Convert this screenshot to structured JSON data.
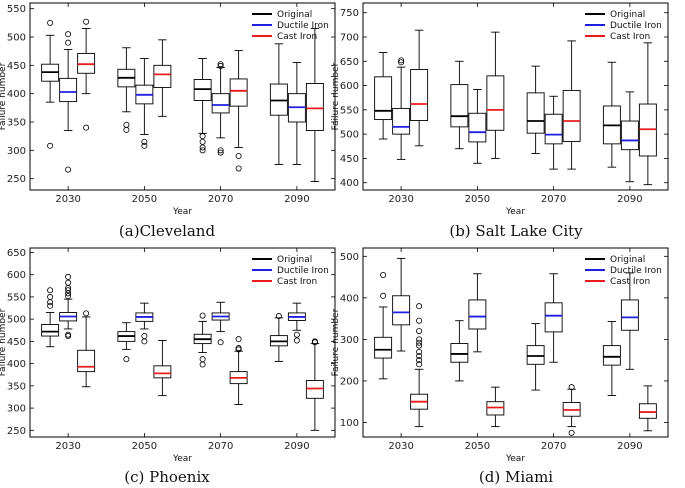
{
  "legend": [
    {
      "name": "Original",
      "color": "#000000"
    },
    {
      "name": "Ductile Iron",
      "color": "#1f1fe0"
    },
    {
      "name": "Cast Iron",
      "color": "#e81c1c"
    }
  ],
  "chart_data": [
    {
      "type": "boxplot",
      "caption": "(a)Cleveland",
      "xlabel": "Year",
      "ylabel": "Failure number",
      "categories": [
        "2030",
        "2050",
        "2070",
        "2090"
      ],
      "ylim": [
        230,
        560
      ],
      "yticks": [
        250,
        300,
        350,
        400,
        450,
        500,
        550
      ],
      "series": [
        {
          "name": "Original",
          "boxes": [
            {
              "whislo": 385,
              "q1": 422,
              "med": 438,
              "q3": 452,
              "whishi": 503,
              "fliers": [
                308,
                525
              ]
            },
            {
              "whislo": 368,
              "q1": 412,
              "med": 428,
              "q3": 443,
              "whishi": 481,
              "fliers": [
                336,
                345
              ]
            },
            {
              "whislo": 330,
              "q1": 388,
              "med": 408,
              "q3": 425,
              "whishi": 462,
              "fliers": [
                300,
                305,
                315,
                325
              ]
            },
            {
              "whislo": 275,
              "q1": 362,
              "med": 388,
              "q3": 417,
              "whishi": 488,
              "fliers": []
            }
          ]
        },
        {
          "name": "Ductile Iron",
          "boxes": [
            {
              "whislo": 335,
              "q1": 386,
              "med": 403,
              "q3": 427,
              "whishi": 478,
              "fliers": [
                266,
                490,
                505
              ]
            },
            {
              "whislo": 328,
              "q1": 382,
              "med": 398,
              "q3": 415,
              "whishi": 462,
              "fliers": [
                308,
                315
              ]
            },
            {
              "whislo": 322,
              "q1": 366,
              "med": 380,
              "q3": 400,
              "whishi": 446,
              "fliers": [
                296,
                300,
                449,
                452
              ]
            },
            {
              "whislo": 275,
              "q1": 350,
              "med": 376,
              "q3": 400,
              "whishi": 455,
              "fliers": []
            }
          ]
        },
        {
          "name": "Cast Iron",
          "boxes": [
            {
              "whislo": 400,
              "q1": 436,
              "med": 452,
              "q3": 471,
              "whishi": 515,
              "fliers": [
                340,
                527
              ]
            },
            {
              "whislo": 360,
              "q1": 411,
              "med": 434,
              "q3": 450,
              "whishi": 495,
              "fliers": []
            },
            {
              "whislo": 305,
              "q1": 378,
              "med": 405,
              "q3": 426,
              "whishi": 476,
              "fliers": [
                268,
                290
              ]
            },
            {
              "whislo": 245,
              "q1": 335,
              "med": 374,
              "q3": 418,
              "whishi": 515,
              "fliers": []
            }
          ]
        }
      ]
    },
    {
      "type": "boxplot",
      "caption": "(b) Salt Lake City",
      "xlabel": "Year",
      "ylabel": "Failure number",
      "categories": [
        "2030",
        "2050",
        "2070",
        "2090"
      ],
      "ylim": [
        385,
        770
      ],
      "yticks": [
        400,
        450,
        500,
        550,
        600,
        650,
        700,
        750
      ],
      "series": [
        {
          "name": "Original",
          "boxes": [
            {
              "whislo": 490,
              "q1": 530,
              "med": 548,
              "q3": 618,
              "whishi": 668,
              "fliers": []
            },
            {
              "whislo": 470,
              "q1": 515,
              "med": 537,
              "q3": 602,
              "whishi": 650,
              "fliers": []
            },
            {
              "whislo": 460,
              "q1": 502,
              "med": 527,
              "q3": 585,
              "whishi": 640,
              "fliers": []
            },
            {
              "whislo": 432,
              "q1": 480,
              "med": 518,
              "q3": 558,
              "whishi": 648,
              "fliers": []
            }
          ]
        },
        {
          "name": "Ductile Iron",
          "boxes": [
            {
              "whislo": 448,
              "q1": 500,
              "med": 515,
              "q3": 553,
              "whishi": 638,
              "fliers": [
                648,
                652
              ]
            },
            {
              "whislo": 440,
              "q1": 484,
              "med": 504,
              "q3": 543,
              "whishi": 592,
              "fliers": []
            },
            {
              "whislo": 428,
              "q1": 480,
              "med": 499,
              "q3": 541,
              "whishi": 578,
              "fliers": []
            },
            {
              "whislo": 402,
              "q1": 468,
              "med": 487,
              "q3": 527,
              "whishi": 587,
              "fliers": []
            }
          ]
        },
        {
          "name": "Cast Iron",
          "boxes": [
            {
              "whislo": 476,
              "q1": 528,
              "med": 562,
              "q3": 633,
              "whishi": 714,
              "fliers": []
            },
            {
              "whislo": 450,
              "q1": 508,
              "med": 550,
              "q3": 620,
              "whishi": 710,
              "fliers": []
            },
            {
              "whislo": 428,
              "q1": 485,
              "med": 527,
              "q3": 590,
              "whishi": 692,
              "fliers": []
            },
            {
              "whislo": 396,
              "q1": 455,
              "med": 510,
              "q3": 562,
              "whishi": 688,
              "fliers": []
            }
          ]
        }
      ]
    },
    {
      "type": "boxplot",
      "caption": "(c) Phoenix",
      "xlabel": "Year",
      "ylabel": "Failure number",
      "categories": [
        "2030",
        "2050",
        "2070",
        "2090"
      ],
      "ylim": [
        235,
        660
      ],
      "yticks": [
        250,
        300,
        350,
        400,
        450,
        500,
        550,
        600,
        650
      ],
      "series": [
        {
          "name": "Original",
          "boxes": [
            {
              "whislo": 438,
              "q1": 462,
              "med": 472,
              "q3": 488,
              "whishi": 515,
              "fliers": [
                530,
                538,
                550,
                565
              ]
            },
            {
              "whislo": 432,
              "q1": 450,
              "med": 462,
              "q3": 472,
              "whishi": 492,
              "fliers": [
                410
              ]
            },
            {
              "whislo": 425,
              "q1": 445,
              "med": 455,
              "q3": 466,
              "whishi": 495,
              "fliers": [
                398,
                410,
                508
              ]
            },
            {
              "whislo": 405,
              "q1": 440,
              "med": 450,
              "q3": 463,
              "whishi": 503,
              "fliers": [
                507
              ]
            }
          ]
        },
        {
          "name": "Ductile Iron",
          "boxes": [
            {
              "whislo": 478,
              "q1": 496,
              "med": 506,
              "q3": 515,
              "whishi": 545,
              "fliers": [
                462,
                465,
                552,
                558,
                565,
                570,
                582,
                595
              ]
            },
            {
              "whislo": 478,
              "q1": 495,
              "med": 505,
              "q3": 514,
              "whishi": 536,
              "fliers": [
                450,
                462
              ]
            },
            {
              "whislo": 472,
              "q1": 498,
              "med": 506,
              "q3": 514,
              "whishi": 538,
              "fliers": [
                448
              ]
            },
            {
              "whislo": 475,
              "q1": 497,
              "med": 505,
              "q3": 514,
              "whishi": 536,
              "fliers": [
                452,
                465
              ]
            }
          ]
        },
        {
          "name": "Cast Iron",
          "boxes": [
            {
              "whislo": 348,
              "q1": 382,
              "med": 393,
              "q3": 430,
              "whishi": 505,
              "fliers": [
                513
              ]
            },
            {
              "whislo": 328,
              "q1": 368,
              "med": 378,
              "q3": 395,
              "whishi": 452,
              "fliers": []
            },
            {
              "whislo": 308,
              "q1": 355,
              "med": 368,
              "q3": 382,
              "whishi": 428,
              "fliers": [
                432,
                435,
                455
              ]
            },
            {
              "whislo": 250,
              "q1": 322,
              "med": 344,
              "q3": 362,
              "whishi": 445,
              "fliers": [
                448,
                450
              ]
            }
          ]
        }
      ]
    },
    {
      "type": "boxplot",
      "caption": "(d) Miami",
      "xlabel": "Year",
      "ylabel": "Failure number",
      "categories": [
        "2030",
        "2050",
        "2070",
        "2090"
      ],
      "ylim": [
        65,
        520
      ],
      "yticks": [
        100,
        200,
        300,
        400,
        500
      ],
      "series": [
        {
          "name": "Original",
          "boxes": [
            {
              "whislo": 205,
              "q1": 255,
              "med": 275,
              "q3": 305,
              "whishi": 378,
              "fliers": [
                405,
                455
              ]
            },
            {
              "whislo": 200,
              "q1": 245,
              "med": 265,
              "q3": 290,
              "whishi": 345,
              "fliers": []
            },
            {
              "whislo": 178,
              "q1": 240,
              "med": 260,
              "q3": 285,
              "whishi": 338,
              "fliers": []
            },
            {
              "whislo": 165,
              "q1": 238,
              "med": 258,
              "q3": 285,
              "whishi": 343,
              "fliers": []
            }
          ]
        },
        {
          "name": "Ductile Iron",
          "boxes": [
            {
              "whislo": 272,
              "q1": 335,
              "med": 365,
              "q3": 405,
              "whishi": 495,
              "fliers": []
            },
            {
              "whislo": 270,
              "q1": 325,
              "med": 355,
              "q3": 395,
              "whishi": 458,
              "fliers": []
            },
            {
              "whislo": 245,
              "q1": 318,
              "med": 357,
              "q3": 388,
              "whishi": 458,
              "fliers": []
            },
            {
              "whislo": 228,
              "q1": 322,
              "med": 353,
              "q3": 395,
              "whishi": 460,
              "fliers": []
            }
          ]
        },
        {
          "name": "Cast Iron",
          "boxes": [
            {
              "whislo": 90,
              "q1": 132,
              "med": 150,
              "q3": 168,
              "whishi": 228,
              "fliers": [
                240,
                250,
                260,
                270,
                285,
                292,
                300,
                320,
                345,
                380
              ]
            },
            {
              "whislo": 90,
              "q1": 118,
              "med": 136,
              "q3": 150,
              "whishi": 185,
              "fliers": []
            },
            {
              "whislo": 90,
              "q1": 115,
              "med": 130,
              "q3": 148,
              "whishi": 180,
              "fliers": [
                75,
                185
              ]
            },
            {
              "whislo": 80,
              "q1": 110,
              "med": 125,
              "q3": 145,
              "whishi": 188,
              "fliers": []
            }
          ]
        }
      ]
    }
  ]
}
